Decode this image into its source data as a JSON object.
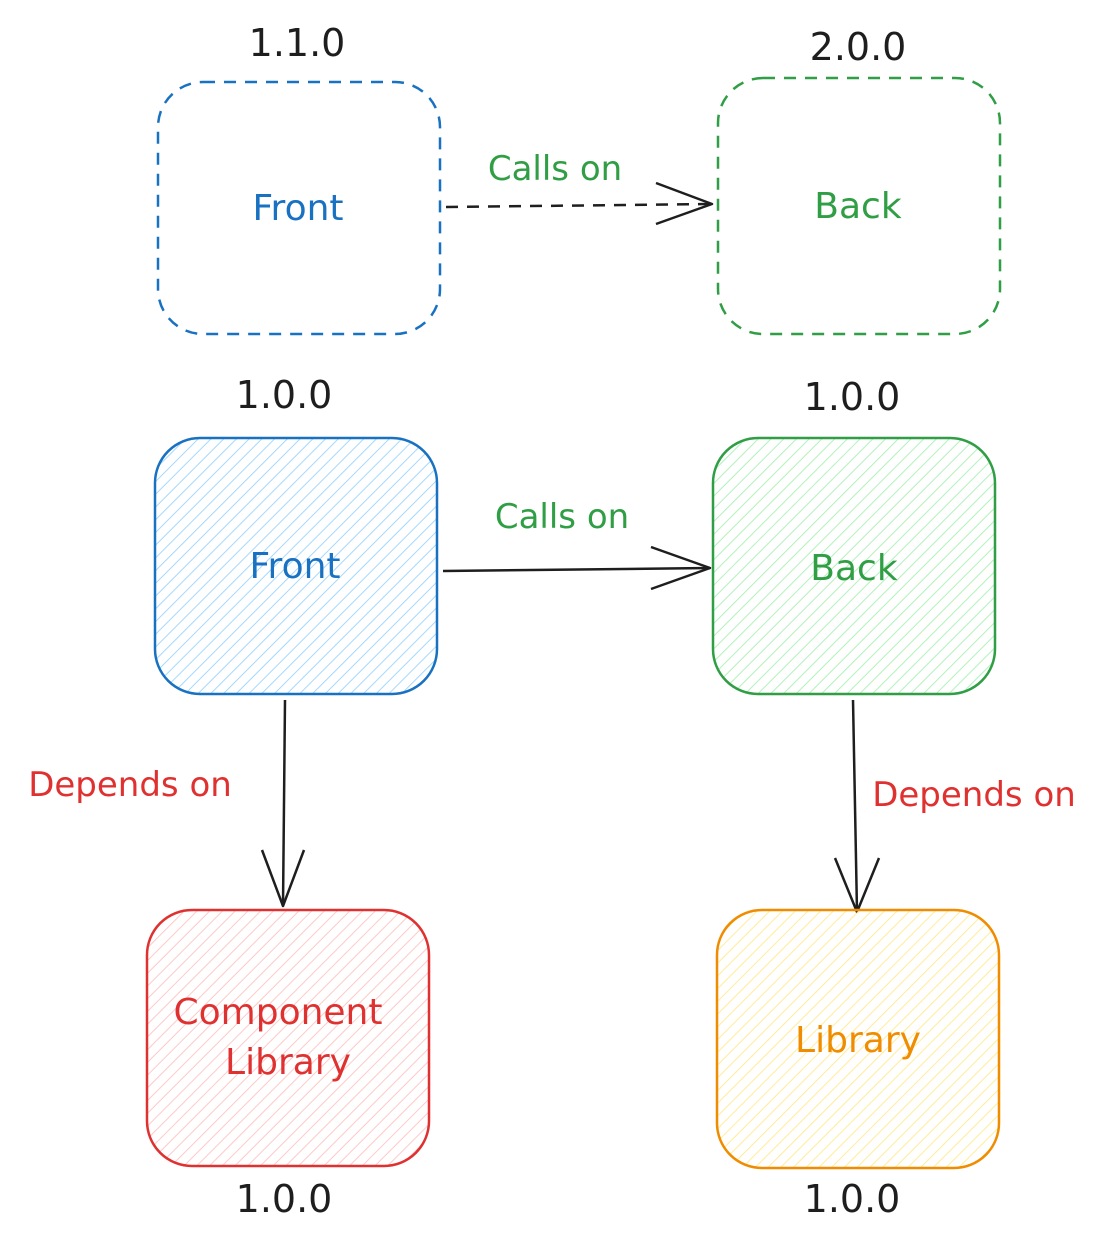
{
  "colors": {
    "front": "#1971c2",
    "front_fill": "#a5d8ff",
    "back": "#2f9e44",
    "back_fill": "#b2f2bb",
    "component": "#e03131",
    "component_fill": "#ffc9c9",
    "library": "#f08c00",
    "library_fill": "#ffec99",
    "ink": "#1e1e1e"
  },
  "planned": {
    "front": {
      "label": "Front",
      "version": "1.1.0"
    },
    "back": {
      "label": "Back",
      "version": "2.0.0"
    },
    "edge_label": "Calls on"
  },
  "current": {
    "front": {
      "label": "Front",
      "version": "1.0.0"
    },
    "back": {
      "label": "Back",
      "version": "1.0.0"
    },
    "edge_label": "Calls on"
  },
  "dependencies": {
    "component_library": {
      "label_line1": "Component",
      "label_line2": "Library",
      "version": "1.0.0"
    },
    "library": {
      "label": "Library",
      "version": "1.0.0"
    },
    "front_edge_label": "Depends on",
    "back_edge_label": "Depends on"
  }
}
